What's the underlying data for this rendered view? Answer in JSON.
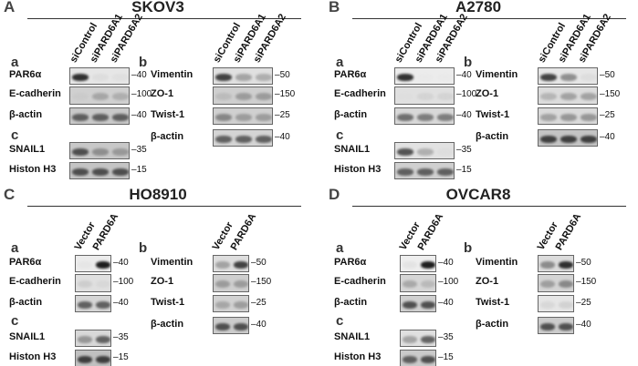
{
  "panels": [
    {
      "letter": "A",
      "title": "SKOV3",
      "groups": [
        {
          "sub": "a",
          "lanes": [
            "siControl",
            "siPARD6A1",
            "siPARD6A2"
          ],
          "rows": [
            {
              "name": "PAR6α",
              "mw": "40",
              "bg": "#e6e6e6",
              "levels": [
                0.9,
                0.15,
                0.12
              ]
            },
            {
              "name": "E-cadherin",
              "mw": "100",
              "bg": "#d0d0d0",
              "levels": [
                0.15,
                0.45,
                0.4
              ]
            },
            {
              "name": "β-actin",
              "mw": "40",
              "bg": "#c8c8c8",
              "levels": [
                0.75,
                0.75,
                0.75
              ]
            }
          ]
        },
        {
          "sub": "b",
          "lanes": [
            "siControl",
            "siPARD6A1",
            "siPARD6A2"
          ],
          "rows": [
            {
              "name": "Vimentin",
              "mw": "50",
              "bg": "#e0e0e0",
              "levels": [
                0.85,
                0.5,
                0.45
              ]
            },
            {
              "name": "ZO-1",
              "mw": "150",
              "bg": "#cfcfcf",
              "levels": [
                0.3,
                0.5,
                0.5
              ]
            },
            {
              "name": "Twist-1",
              "mw": "25",
              "bg": "#d0d0d0",
              "levels": [
                0.6,
                0.5,
                0.5
              ]
            },
            {
              "name": "β-actin",
              "mw": "40",
              "bg": "#d4d4d4",
              "levels": [
                0.75,
                0.75,
                0.75
              ]
            }
          ]
        },
        {
          "sub": "c",
          "lanes": [],
          "rows": [
            {
              "name": "SNAIL1",
              "mw": "35",
              "bg": "#c8c8c8",
              "levels": [
                0.8,
                0.55,
                0.5
              ]
            },
            {
              "name": "Histon H3",
              "mw": "15",
              "bg": "#c4c4c4",
              "levels": [
                0.8,
                0.8,
                0.8
              ]
            }
          ]
        }
      ]
    },
    {
      "letter": "B",
      "title": "A2780",
      "groups": [
        {
          "sub": "a",
          "lanes": [
            "siControl",
            "siPARD6A1",
            "siPARD6A2"
          ],
          "rows": [
            {
              "name": "PAR6α",
              "mw": "40",
              "bg": "#ececec",
              "levels": [
                0.9,
                0.05,
                0.05
              ]
            },
            {
              "name": "E-cadherin",
              "mw": "100",
              "bg": "#e0e0e0",
              "levels": [
                0.05,
                0.2,
                0.2
              ]
            },
            {
              "name": "β-actin",
              "mw": "40",
              "bg": "#d8d8d8",
              "levels": [
                0.7,
                0.65,
                0.65
              ]
            }
          ]
        },
        {
          "sub": "b",
          "lanes": [
            "siControl",
            "siPARD6A1",
            "siPARD6A2"
          ],
          "rows": [
            {
              "name": "Vimentin",
              "mw": "50",
              "bg": "#e6e6e6",
              "levels": [
                0.85,
                0.6,
                0.15
              ]
            },
            {
              "name": "ZO-1",
              "mw": "150",
              "bg": "#dcdcdc",
              "levels": [
                0.4,
                0.5,
                0.5
              ]
            },
            {
              "name": "Twist-1",
              "mw": "25",
              "bg": "#dadada",
              "levels": [
                0.5,
                0.55,
                0.55
              ]
            },
            {
              "name": "β-actin",
              "mw": "40",
              "bg": "#c4c4c4",
              "levels": [
                0.85,
                0.85,
                0.85
              ]
            }
          ]
        },
        {
          "sub": "c",
          "lanes": [],
          "rows": [
            {
              "name": "SNAIL1",
              "mw": "35",
              "bg": "#e2e2e2",
              "levels": [
                0.8,
                0.45,
                0.1
              ]
            },
            {
              "name": "Histon H3",
              "mw": "15",
              "bg": "#d0d0d0",
              "levels": [
                0.75,
                0.75,
                0.75
              ]
            }
          ]
        }
      ]
    },
    {
      "letter": "C",
      "title": "HO8910",
      "groups": [
        {
          "sub": "a",
          "lanes": [
            "Vector",
            "PARD6A"
          ],
          "rows": [
            {
              "name": "PAR6α",
              "mw": "40",
              "bg": "#ececec",
              "levels": [
                0.1,
                0.95
              ]
            },
            {
              "name": "E-cadherin",
              "mw": "100",
              "bg": "#e0e0e0",
              "levels": [
                0.25,
                0.15
              ]
            },
            {
              "name": "β-actin",
              "mw": "40",
              "bg": "#d6d6d6",
              "levels": [
                0.75,
                0.75
              ]
            }
          ]
        },
        {
          "sub": "b",
          "lanes": [
            "Vector",
            "PARD6A"
          ],
          "rows": [
            {
              "name": "Vimentin",
              "mw": "50",
              "bg": "#dedede",
              "levels": [
                0.5,
                0.85
              ]
            },
            {
              "name": "ZO-1",
              "mw": "150",
              "bg": "#cfcfcf",
              "levels": [
                0.5,
                0.5
              ]
            },
            {
              "name": "Twist-1",
              "mw": "25",
              "bg": "#d2d2d2",
              "levels": [
                0.45,
                0.5
              ]
            },
            {
              "name": "β-actin",
              "mw": "40",
              "bg": "#cccccc",
              "levels": [
                0.8,
                0.8
              ]
            }
          ]
        },
        {
          "sub": "c",
          "lanes": [],
          "rows": [
            {
              "name": "SNAIL1",
              "mw": "35",
              "bg": "#d8d8d8",
              "levels": [
                0.55,
                0.75
              ]
            },
            {
              "name": "Histon H3",
              "mw": "15",
              "bg": "#c0c0c0",
              "levels": [
                0.85,
                0.85
              ]
            }
          ]
        }
      ]
    },
    {
      "letter": "D",
      "title": "OVCAR8",
      "groups": [
        {
          "sub": "a",
          "lanes": [
            "Vector",
            "PARD6A"
          ],
          "rows": [
            {
              "name": "PAR6α",
              "mw": "40",
              "bg": "#eeeeee",
              "levels": [
                0.15,
                0.95
              ]
            },
            {
              "name": "E-cadherin",
              "mw": "100",
              "bg": "#d6d6d6",
              "levels": [
                0.45,
                0.35
              ]
            },
            {
              "name": "β-actin",
              "mw": "40",
              "bg": "#d0d0d0",
              "levels": [
                0.8,
                0.8
              ]
            }
          ]
        },
        {
          "sub": "b",
          "lanes": [
            "Vector",
            "PARD6A"
          ],
          "rows": [
            {
              "name": "Vimentin",
              "mw": "50",
              "bg": "#dcdcdc",
              "levels": [
                0.6,
                0.9
              ]
            },
            {
              "name": "ZO-1",
              "mw": "150",
              "bg": "#d4d4d4",
              "levels": [
                0.5,
                0.6
              ]
            },
            {
              "name": "Twist-1",
              "mw": "25",
              "bg": "#e6e6e6",
              "levels": [
                0.2,
                0.25
              ]
            },
            {
              "name": "β-actin",
              "mw": "40",
              "bg": "#cccccc",
              "levels": [
                0.8,
                0.8
              ]
            }
          ]
        },
        {
          "sub": "c",
          "lanes": [],
          "rows": [
            {
              "name": "SNAIL1",
              "mw": "35",
              "bg": "#e0e0e0",
              "levels": [
                0.5,
                0.75
              ]
            },
            {
              "name": "Histon H3",
              "mw": "15",
              "bg": "#cacaca",
              "levels": [
                0.75,
                0.8
              ]
            }
          ]
        }
      ]
    }
  ]
}
